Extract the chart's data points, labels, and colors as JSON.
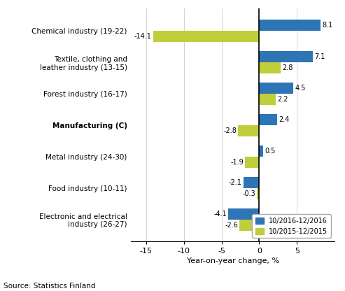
{
  "categories": [
    "Electronic and electrical\nindustry (26-27)",
    "Food industry (10-11)",
    "Metal industry (24-30)",
    "Manufacturing (C)",
    "Forest industry (16-17)",
    "Textile, clothing and\nleather industry (13-15)",
    "Chemical industry (19-22)"
  ],
  "series_2016": [
    -4.1,
    -2.1,
    0.5,
    2.4,
    4.5,
    7.1,
    8.1
  ],
  "series_2015": [
    -2.6,
    -0.3,
    -1.9,
    -2.8,
    2.2,
    2.8,
    -14.1
  ],
  "color_2016": "#2E75B6",
  "color_2015": "#BFCE3A",
  "legend_2016": "10/2016-12/2016",
  "legend_2015": "10/2015-12/2015",
  "xlabel": "Year-on-year change, %",
  "xlim": [
    -17,
    10
  ],
  "xticks": [
    -15,
    -10,
    -5,
    0,
    5
  ],
  "source": "Source: Statistics Finland",
  "bar_height": 0.35,
  "bold_category": "Manufacturing (C)"
}
